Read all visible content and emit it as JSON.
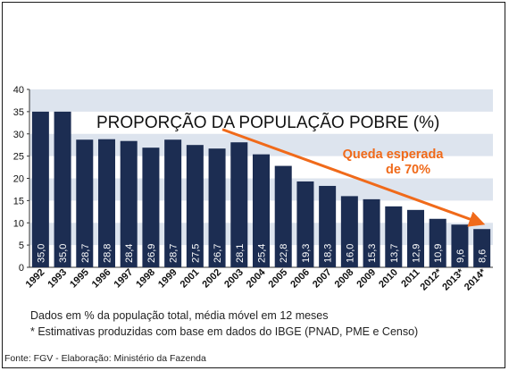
{
  "chart_data": {
    "type": "bar",
    "title": "PROPORÇÃO DA POPULAÇÃO POBRE (%)",
    "categories": [
      "1992",
      "1993",
      "1995",
      "1996",
      "1997",
      "1998",
      "1999",
      "2001",
      "2002",
      "2003",
      "2004",
      "2005",
      "2006",
      "2007",
      "2008",
      "2009",
      "2010",
      "2011",
      "2012*",
      "2013*",
      "2014*"
    ],
    "values": [
      35.0,
      35.0,
      28.7,
      28.8,
      28.4,
      26.9,
      28.7,
      27.5,
      26.7,
      28.1,
      25.4,
      22.8,
      19.3,
      18.3,
      16.0,
      15.3,
      13.7,
      12.9,
      10.9,
      9.6,
      8.6
    ],
    "value_labels": [
      "35,0",
      "35,0",
      "28,7",
      "28,8",
      "28,4",
      "26,9",
      "28,7",
      "27,5",
      "26,7",
      "28,1",
      "25,4",
      "22,8",
      "19,3",
      "18,3",
      "16,0",
      "15,3",
      "13,7",
      "12,9",
      "10,9",
      "9,6",
      "8,6"
    ],
    "yticks": [
      "0",
      "5",
      "10",
      "15",
      "20",
      "25",
      "30",
      "35",
      "40"
    ],
    "ylim": [
      0,
      40
    ],
    "annotation": {
      "line1": "Queda esperada",
      "line2": "de 70%",
      "arrow_from_category": "2002",
      "arrow_from_value": 31.0,
      "arrow_to_category": "2014*",
      "arrow_to_value": 10.0
    },
    "colors": {
      "bar": "#1c2d52",
      "band": "#dde4ee",
      "accent": "#f06a1a",
      "value_text": "#ffffff"
    },
    "grid": "alternating-bands"
  },
  "notes": {
    "line1": "Dados em % da população total, média móvel em 12 meses",
    "line2": "* Estimativas produzidas com base em dados do IBGE (PNAD, PME e Censo)"
  },
  "source": "Fonte: FGV - Elaboração: Ministério da Fazenda"
}
